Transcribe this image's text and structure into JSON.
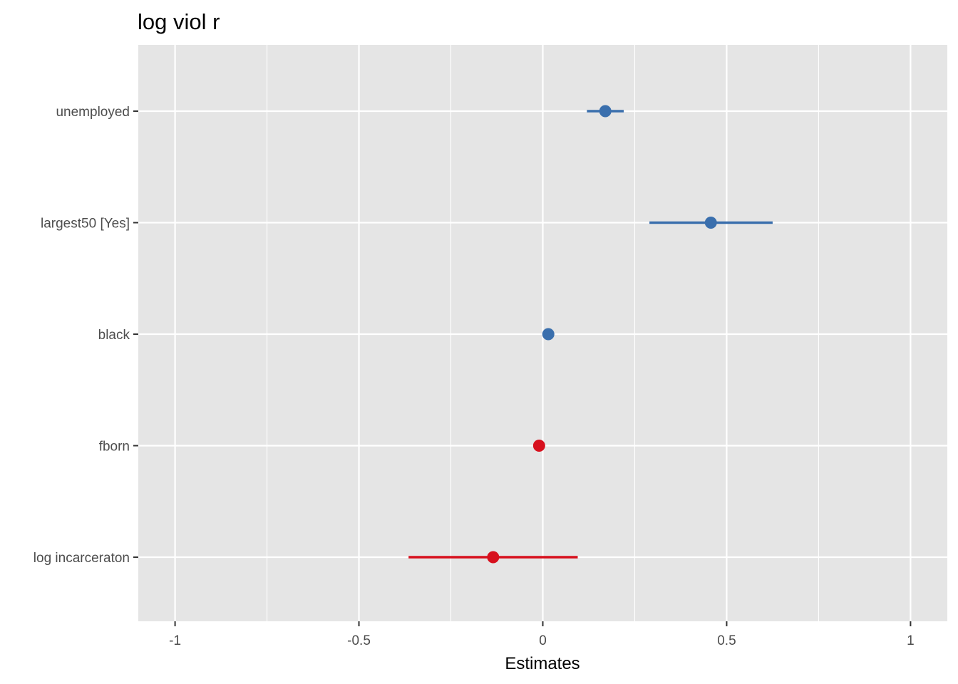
{
  "chart_data": {
    "type": "scatter",
    "subtype": "forest-plot",
    "title": "log viol r",
    "xlabel": "Estimates",
    "ylabel": "",
    "xlim": [
      -1.1,
      1.1
    ],
    "xticks": [
      -1,
      -0.5,
      0,
      0.5,
      1
    ],
    "xtick_labels": [
      "-1",
      "-0.5",
      "0",
      "0.5",
      "1"
    ],
    "grid": true,
    "legend": "none",
    "colors": {
      "positive": "#3a6fad",
      "negative": "#d7101d",
      "panel": "#e5e5e5",
      "grid": "#ffffff"
    },
    "terms": [
      {
        "label": "unemployed",
        "estimate": 0.17,
        "conf_low": 0.12,
        "conf_high": 0.22,
        "sign": "positive"
      },
      {
        "label": "largest50 [Yes]",
        "estimate": 0.457,
        "conf_low": 0.29,
        "conf_high": 0.625,
        "sign": "positive"
      },
      {
        "label": "black",
        "estimate": 0.015,
        "conf_low": 0.01,
        "conf_high": 0.02,
        "sign": "positive"
      },
      {
        "label": "fborn",
        "estimate": -0.01,
        "conf_low": -0.015,
        "conf_high": -0.005,
        "sign": "negative"
      },
      {
        "label": "log incarceraton",
        "estimate": -0.135,
        "conf_low": -0.365,
        "conf_high": 0.095,
        "sign": "negative"
      }
    ]
  }
}
